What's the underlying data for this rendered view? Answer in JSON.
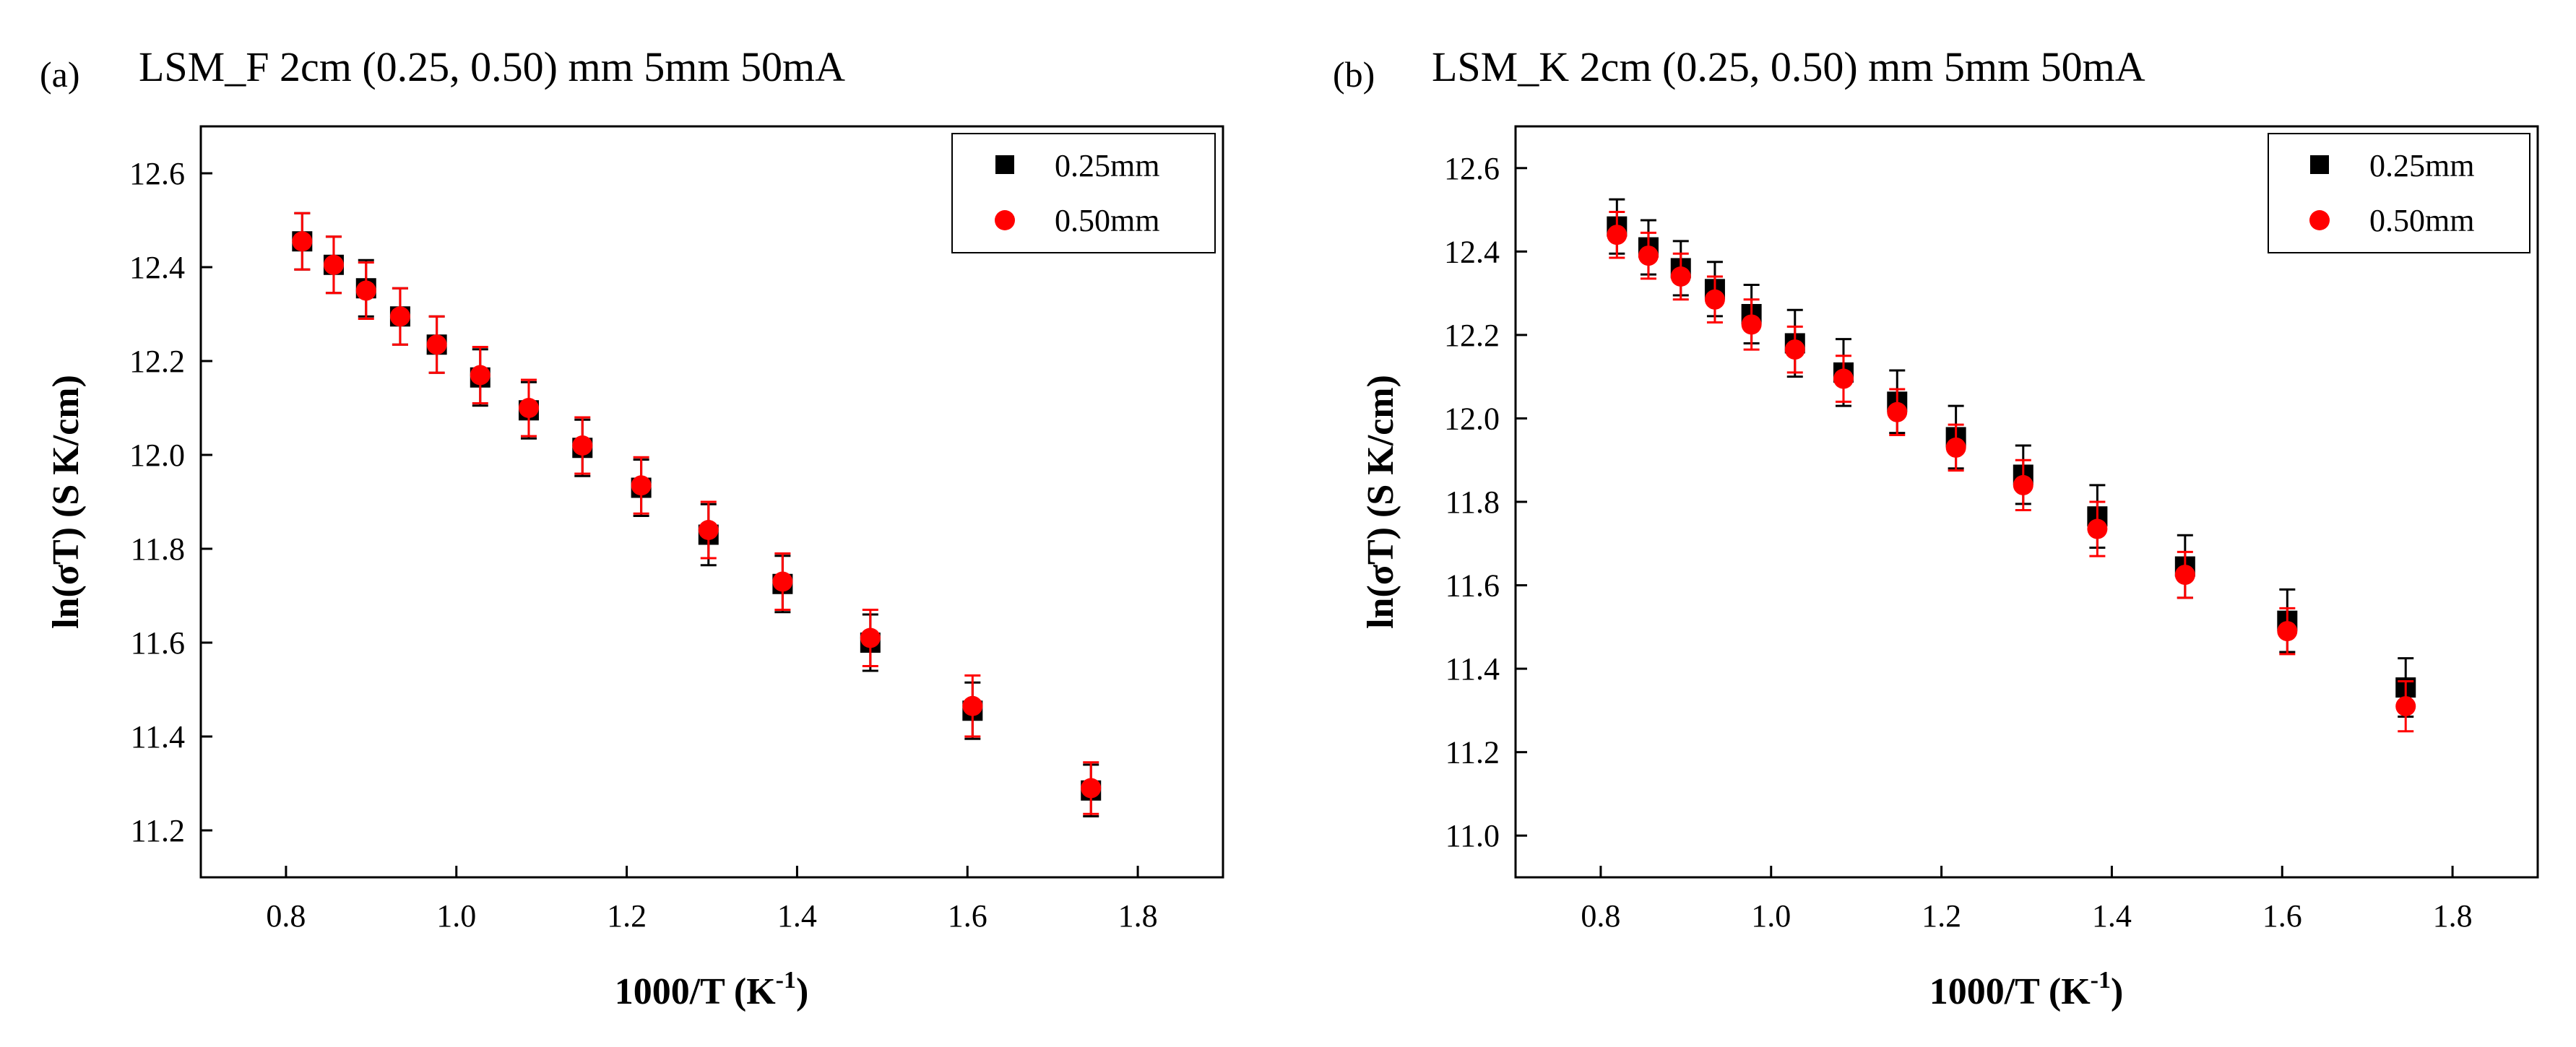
{
  "chart_data": [
    {
      "type": "scatter",
      "panel_label": "(a)",
      "title": "LSM_F 2cm (0.25, 0.50) mm 5mm 50mA",
      "xlabel": "1000/T (K",
      "xlabel_sup": "-1",
      "xlabel_suffix": ")",
      "ylabel": "ln(σT) (S K/cm)",
      "xlim": [
        0.7,
        1.9
      ],
      "ylim": [
        11.1,
        12.7
      ],
      "xticks": [
        0.8,
        1.0,
        1.2,
        1.4,
        1.6,
        1.8
      ],
      "xtick_labels": [
        "0.8",
        "1.0",
        "1.2",
        "1.4",
        "1.6",
        "1.8"
      ],
      "yticks": [
        11.2,
        11.4,
        11.6,
        11.8,
        12.0,
        12.2,
        12.4,
        12.6
      ],
      "ytick_labels": [
        "11.2",
        "11.4",
        "11.6",
        "11.8",
        "12.0",
        "12.2",
        "12.4",
        "12.6"
      ],
      "legend_position": "top-right",
      "grid": false,
      "series": [
        {
          "name": "0.25mm",
          "marker": "square",
          "color": "#000000",
          "x": [
            0.819,
            0.856,
            0.894,
            0.934,
            0.977,
            1.028,
            1.085,
            1.148,
            1.217,
            1.296,
            1.383,
            1.486,
            1.606,
            1.745
          ],
          "y": [
            12.455,
            12.405,
            12.355,
            12.295,
            12.235,
            12.165,
            12.095,
            12.015,
            11.93,
            11.83,
            11.725,
            11.6,
            11.455,
            11.285
          ],
          "err": [
            0.06,
            0.06,
            0.06,
            0.06,
            0.06,
            0.06,
            0.06,
            0.06,
            0.06,
            0.065,
            0.06,
            0.06,
            0.06,
            0.055
          ]
        },
        {
          "name": "0.50mm",
          "marker": "circle",
          "color": "#ff0000",
          "x": [
            0.819,
            0.856,
            0.894,
            0.934,
            0.977,
            1.028,
            1.085,
            1.148,
            1.217,
            1.296,
            1.383,
            1.486,
            1.606,
            1.745
          ],
          "y": [
            12.455,
            12.405,
            12.35,
            12.295,
            12.235,
            12.17,
            12.1,
            12.02,
            11.935,
            11.84,
            11.73,
            11.61,
            11.465,
            11.29
          ],
          "err": [
            0.06,
            0.06,
            0.06,
            0.06,
            0.06,
            0.06,
            0.06,
            0.06,
            0.06,
            0.06,
            0.06,
            0.06,
            0.065,
            0.055
          ]
        }
      ]
    },
    {
      "type": "scatter",
      "panel_label": "(b)",
      "title": "LSM_K 2cm (0.25, 0.50) mm 5mm 50mA",
      "xlabel": "1000/T (K",
      "xlabel_sup": "-1",
      "xlabel_suffix": ")",
      "ylabel": "ln(σT) (S K/cm)",
      "xlim": [
        0.7,
        1.9
      ],
      "ylim": [
        10.9,
        12.7
      ],
      "xticks": [
        0.8,
        1.0,
        1.2,
        1.4,
        1.6,
        1.8
      ],
      "xtick_labels": [
        "0.8",
        "1.0",
        "1.2",
        "1.4",
        "1.6",
        "1.8"
      ],
      "yticks": [
        11.0,
        11.2,
        11.4,
        11.6,
        11.8,
        12.0,
        12.2,
        12.4,
        12.6
      ],
      "ytick_labels": [
        "11.0",
        "11.2",
        "11.4",
        "11.6",
        "11.8",
        "12.0",
        "12.2",
        "12.4",
        "12.6"
      ],
      "legend_position": "top-right",
      "grid": false,
      "series": [
        {
          "name": "0.25mm",
          "marker": "square",
          "color": "#000000",
          "x": [
            0.819,
            0.856,
            0.894,
            0.934,
            0.977,
            1.028,
            1.085,
            1.148,
            1.217,
            1.296,
            1.383,
            1.486,
            1.606,
            1.745
          ],
          "y": [
            12.46,
            12.41,
            12.36,
            12.31,
            12.25,
            12.18,
            12.11,
            12.04,
            11.955,
            11.865,
            11.765,
            11.645,
            11.515,
            11.355
          ],
          "err": [
            0.065,
            0.065,
            0.065,
            0.065,
            0.07,
            0.08,
            0.08,
            0.075,
            0.075,
            0.07,
            0.075,
            0.075,
            0.075,
            0.07
          ]
        },
        {
          "name": "0.50mm",
          "marker": "circle",
          "color": "#ff0000",
          "x": [
            0.819,
            0.856,
            0.894,
            0.934,
            0.977,
            1.028,
            1.085,
            1.148,
            1.217,
            1.296,
            1.383,
            1.486,
            1.606,
            1.745
          ],
          "y": [
            12.44,
            12.39,
            12.34,
            12.285,
            12.225,
            12.165,
            12.095,
            12.015,
            11.93,
            11.84,
            11.735,
            11.625,
            11.49,
            11.31
          ],
          "err": [
            0.055,
            0.055,
            0.055,
            0.055,
            0.06,
            0.055,
            0.055,
            0.055,
            0.055,
            0.06,
            0.065,
            0.055,
            0.055,
            0.06
          ]
        }
      ]
    }
  ]
}
